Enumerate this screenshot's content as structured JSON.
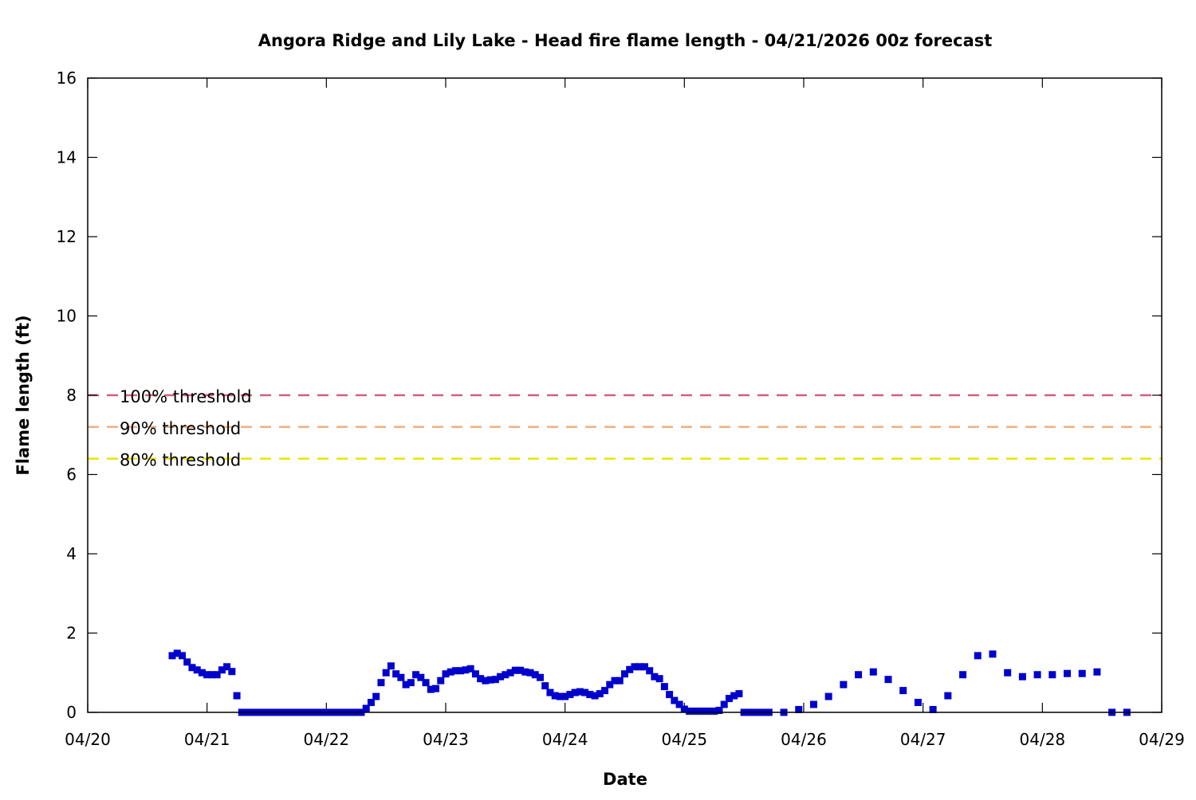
{
  "chart_data": {
    "type": "scatter",
    "title": "Angora Ridge and Lily Lake - Head fire flame length - 04/21/2026 00z forecast",
    "xlabel": "Date",
    "ylabel": "Flame length (ft)",
    "x_units": "hours since 04/20 00z",
    "xlim": [
      0,
      216
    ],
    "ylim": [
      0,
      16
    ],
    "x_tick_labels": [
      "04/20",
      "04/21",
      "04/22",
      "04/23",
      "04/24",
      "04/25",
      "04/26",
      "04/27",
      "04/28",
      "04/29"
    ],
    "y_ticks": [
      0,
      2,
      4,
      6,
      8,
      10,
      12,
      14,
      16
    ],
    "grid": false,
    "marker_color": "#0000cc",
    "thresholds": [
      {
        "label": "100% threshold",
        "value": 8.0,
        "color": "#d0607a"
      },
      {
        "label": "90% threshold",
        "value": 7.2,
        "color": "#f0b080"
      },
      {
        "label": "80% threshold",
        "value": 6.4,
        "color": "#e6e600"
      }
    ],
    "series": [
      {
        "name": "Head fire flame length",
        "x": [
          17,
          18,
          19,
          20,
          21,
          22,
          23,
          24,
          25,
          26,
          27,
          28,
          29,
          30,
          31,
          32,
          33,
          34,
          35,
          36,
          37,
          38,
          39,
          40,
          41,
          42,
          43,
          44,
          45,
          46,
          47,
          48,
          49,
          50,
          51,
          52,
          53,
          54,
          55,
          56,
          57,
          58,
          59,
          60,
          61,
          62,
          63,
          64,
          65,
          66,
          67,
          68,
          69,
          70,
          71,
          72,
          73,
          74,
          75,
          76,
          77,
          78,
          79,
          80,
          81,
          82,
          83,
          84,
          85,
          86,
          87,
          88,
          89,
          90,
          91,
          92,
          93,
          94,
          95,
          96,
          97,
          98,
          99,
          100,
          101,
          102,
          103,
          104,
          105,
          106,
          107,
          108,
          109,
          110,
          111,
          112,
          113,
          114,
          115,
          116,
          117,
          118,
          119,
          120,
          121,
          122,
          123,
          124,
          125,
          126,
          127,
          128,
          129,
          130,
          131,
          132,
          133,
          134,
          135,
          136,
          137,
          140,
          143,
          146,
          149,
          152,
          155,
          158,
          161,
          164,
          167,
          170,
          173,
          176,
          179,
          182,
          185,
          188,
          191,
          194,
          197,
          200,
          203,
          206,
          209
        ],
        "y": [
          1.43,
          1.49,
          1.43,
          1.27,
          1.13,
          1.07,
          1.0,
          0.95,
          0.95,
          0.95,
          1.07,
          1.15,
          1.03,
          0.42,
          0,
          0,
          0,
          0,
          0,
          0,
          0,
          0,
          0,
          0,
          0,
          0,
          0,
          0,
          0,
          0,
          0,
          0,
          0,
          0,
          0,
          0,
          0,
          0,
          0,
          0.1,
          0.25,
          0.4,
          0.75,
          1.0,
          1.17,
          0.97,
          0.88,
          0.7,
          0.75,
          0.95,
          0.88,
          0.75,
          0.58,
          0.6,
          0.8,
          0.97,
          1.02,
          1.05,
          1.05,
          1.07,
          1.1,
          0.97,
          0.85,
          0.8,
          0.82,
          0.83,
          0.9,
          0.95,
          1.0,
          1.06,
          1.06,
          1.02,
          1.0,
          0.95,
          0.88,
          0.67,
          0.5,
          0.42,
          0.4,
          0.4,
          0.45,
          0.5,
          0.52,
          0.5,
          0.45,
          0.42,
          0.47,
          0.55,
          0.7,
          0.8,
          0.8,
          0.97,
          1.08,
          1.15,
          1.15,
          1.15,
          1.05,
          0.9,
          0.85,
          0.65,
          0.45,
          0.3,
          0.2,
          0.08,
          0.03,
          0.03,
          0.03,
          0.03,
          0.03,
          0.03,
          0.05,
          0.2,
          0.35,
          0.42,
          0.47,
          0,
          0,
          0,
          0,
          0,
          0,
          0,
          0.07,
          0.2,
          0.4,
          0.7,
          0.95,
          1.02,
          0.83,
          0.55,
          0.25,
          0.07,
          0.42,
          0.95,
          1.43,
          1.47,
          1.0,
          0.9,
          0.95,
          0.95,
          0.98,
          0.98,
          1.02,
          0,
          0
        ]
      }
    ]
  }
}
